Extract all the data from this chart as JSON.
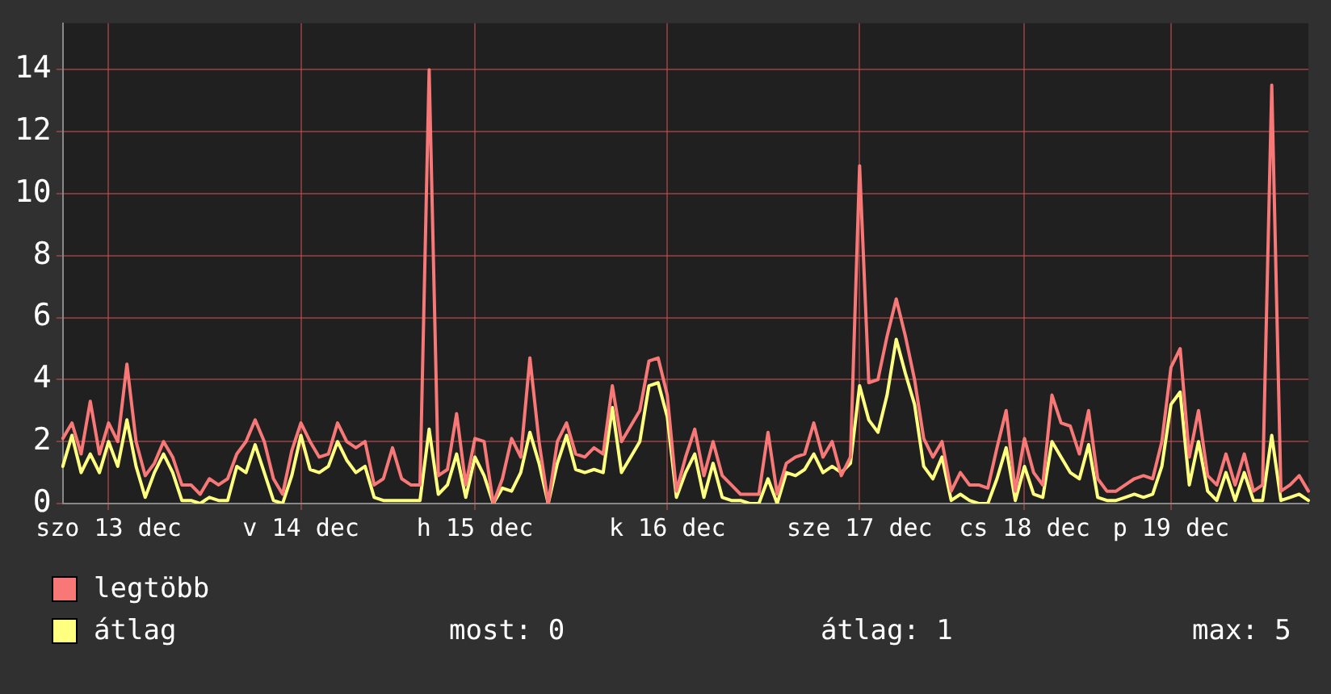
{
  "chart_data": {
    "type": "line",
    "categories": [
      null,
      null,
      null,
      null,
      null,
      "szo 13 dec",
      null,
      null,
      null,
      null,
      null,
      null,
      null,
      null,
      null,
      null,
      null,
      null,
      null,
      null,
      null,
      null,
      null,
      null,
      null,
      null,
      "v 14 dec",
      null,
      null,
      null,
      null,
      null,
      null,
      null,
      null,
      null,
      null,
      null,
      null,
      null,
      null,
      null,
      null,
      null,
      null,
      "h 15 dec",
      null,
      null,
      null,
      null,
      null,
      null,
      null,
      null,
      null,
      null,
      null,
      null,
      null,
      null,
      null,
      null,
      null,
      null,
      null,
      null,
      "k 16 dec",
      null,
      null,
      null,
      null,
      null,
      null,
      null,
      null,
      null,
      null,
      null,
      null,
      null,
      null,
      null,
      null,
      null,
      null,
      null,
      null,
      "sze 17 dec",
      null,
      null,
      null,
      null,
      null,
      null,
      null,
      null,
      null,
      null,
      null,
      null,
      null,
      null,
      null,
      null,
      null,
      "cs 18 dec",
      null,
      null,
      null,
      null,
      null,
      null,
      null,
      null,
      null,
      null,
      null,
      null,
      null,
      null,
      null,
      "p 19 dec",
      null,
      null,
      null,
      null,
      null,
      null,
      null,
      null,
      null,
      null,
      null,
      null,
      null,
      null,
      null
    ],
    "series": [
      {
        "name": "legtöbb",
        "color": "#f87878",
        "values": [
          2.1,
          2.6,
          1.6,
          3.3,
          1.6,
          2.6,
          2.0,
          4.5,
          2.0,
          0.9,
          1.3,
          2.0,
          1.5,
          0.6,
          0.6,
          0.3,
          0.8,
          0.6,
          0.8,
          1.6,
          2.0,
          2.7,
          2.0,
          0.8,
          0.3,
          1.7,
          2.6,
          2.0,
          1.5,
          1.6,
          2.6,
          2.0,
          1.8,
          2.0,
          0.6,
          0.8,
          1.8,
          0.8,
          0.6,
          0.6,
          14.0,
          0.9,
          1.1,
          2.9,
          0.6,
          2.1,
          2.0,
          0,
          0.8,
          2.1,
          1.5,
          4.7,
          2.0,
          0,
          2.0,
          2.6,
          1.6,
          1.5,
          1.8,
          1.6,
          3.8,
          2.0,
          2.5,
          3.0,
          4.6,
          4.7,
          3.5,
          0.4,
          1.5,
          2.4,
          0.9,
          2.0,
          0.9,
          0.6,
          0.3,
          0.3,
          0.3,
          2.3,
          0.3,
          1.3,
          1.5,
          1.6,
          2.6,
          1.5,
          2.0,
          0.9,
          1.5,
          10.9,
          3.9,
          4.0,
          5.4,
          6.6,
          5.4,
          4.0,
          2.1,
          1.5,
          2.0,
          0.4,
          1.0,
          0.6,
          0.6,
          0.5,
          1.8,
          3.0,
          0.4,
          2.1,
          1.0,
          0.6,
          3.5,
          2.6,
          2.5,
          1.6,
          3.0,
          0.8,
          0.4,
          0.4,
          0.6,
          0.8,
          0.9,
          0.8,
          2.0,
          4.4,
          5.0,
          1.5,
          3.0,
          0.9,
          0.6,
          1.6,
          0.6,
          1.6,
          0.4,
          0.6,
          13.5,
          0.4,
          0.6,
          0.9,
          0.4
        ]
      },
      {
        "name": "átlag",
        "color": "#ffff80",
        "values": [
          1.2,
          2.2,
          1.0,
          1.6,
          1.0,
          2.0,
          1.2,
          2.7,
          1.2,
          0.2,
          1.0,
          1.6,
          1.0,
          0.1,
          0.1,
          0,
          0.2,
          0.1,
          0.1,
          1.2,
          1.0,
          1.9,
          1.0,
          0.1,
          0,
          0.9,
          2.2,
          1.1,
          1.0,
          1.2,
          2.0,
          1.4,
          1.0,
          1.2,
          0.2,
          0.1,
          0.1,
          0.1,
          0.1,
          0.1,
          2.4,
          0.3,
          0.6,
          1.6,
          0.2,
          1.5,
          0.9,
          0,
          0.5,
          0.4,
          1.0,
          2.3,
          1.3,
          0,
          1.3,
          2.2,
          1.1,
          1.0,
          1.1,
          1.0,
          3.1,
          1.0,
          1.5,
          2.0,
          3.8,
          3.9,
          2.8,
          0.2,
          1.0,
          1.6,
          0.2,
          1.3,
          0.2,
          0.1,
          0.1,
          0,
          0,
          0.8,
          0,
          1.0,
          0.9,
          1.1,
          1.6,
          1.0,
          1.2,
          1.0,
          1.3,
          3.8,
          2.7,
          2.3,
          3.5,
          5.3,
          4.2,
          3.2,
          1.2,
          0.8,
          1.5,
          0.1,
          0.3,
          0.1,
          0,
          0,
          0.8,
          1.8,
          0.1,
          1.2,
          0.3,
          0.2,
          2.0,
          1.5,
          1.0,
          0.8,
          1.9,
          0.2,
          0.1,
          0.1,
          0.2,
          0.3,
          0.2,
          0.3,
          1.2,
          3.2,
          3.6,
          0.6,
          2.0,
          0.4,
          0.1,
          1.0,
          0.1,
          1.0,
          0.1,
          0.1,
          2.2,
          0.1,
          0.2,
          0.3,
          0.1
        ]
      }
    ],
    "ylim": [
      0,
      15.5
    ],
    "yticks": [
      0,
      2,
      4,
      6,
      8,
      10,
      12,
      14
    ],
    "grid": true,
    "marker": "none",
    "line_style": "solid",
    "legend": "bottom",
    "annotations": [
      "most: 0",
      "átlag: 1",
      "max: 5"
    ]
  }
}
